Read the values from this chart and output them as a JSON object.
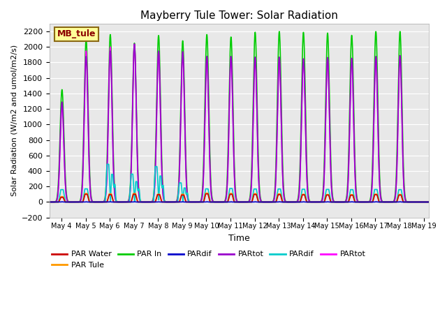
{
  "title": "Mayberry Tule Tower: Solar Radiation",
  "xlabel": "Time",
  "ylabel": "Solar Radiation (W/m2 and umol/m2/s)",
  "ylim": [
    -200,
    2300
  ],
  "yticks": [
    -200,
    0,
    200,
    400,
    600,
    800,
    1000,
    1200,
    1400,
    1600,
    1800,
    2000,
    2200
  ],
  "xlim_days": [
    3.5,
    19.2
  ],
  "xtick_days": [
    4,
    5,
    6,
    7,
    8,
    9,
    10,
    11,
    12,
    13,
    14,
    15,
    16,
    17,
    18,
    19
  ],
  "xtick_labels": [
    "May 4",
    "May 5",
    "May 6",
    "May 7",
    "May 8",
    "May 9",
    "May 10",
    "May 11",
    "May 12",
    "May 13",
    "May 14",
    "May 15",
    "May 16",
    "May 17",
    "May 18",
    "May 19"
  ],
  "bg_color": "#e8e8e8",
  "fig_color": "#ffffff",
  "legend_box_color": "#ffff99",
  "legend_box_edge": "#8b6914",
  "legend_label": "MB_tule",
  "series": [
    {
      "name": "PAR Water",
      "color": "#cc0000",
      "lw": 1.2
    },
    {
      "name": "PAR Tule",
      "color": "#ff9900",
      "lw": 1.2
    },
    {
      "name": "PAR In",
      "color": "#00cc00",
      "lw": 1.2
    },
    {
      "name": "PARdif",
      "color": "#0000cc",
      "lw": 1.2
    },
    {
      "name": "PARtot",
      "color": "#9900cc",
      "lw": 1.2
    },
    {
      "name": "PARdif",
      "color": "#00cccc",
      "lw": 1.2
    },
    {
      "name": "PARtot",
      "color": "#ff00ff",
      "lw": 1.2
    }
  ],
  "peaks": [
    {
      "day": 4,
      "par_in": 1450,
      "par_tot_purple": 1290,
      "par_tot_mag": 1250,
      "par_water": 60,
      "par_tule": 70,
      "pardif_blue": 3,
      "pardif_cyan": 160,
      "cloudy_cyan": false,
      "partial": true
    },
    {
      "day": 5,
      "par_in": 2100,
      "par_tot_purple": 1880,
      "par_tot_mag": 1950,
      "par_water": 100,
      "par_tule": 110,
      "pardif_blue": 3,
      "pardif_cyan": 170,
      "cloudy_cyan": false,
      "partial": false
    },
    {
      "day": 6,
      "par_in": 2160,
      "par_tot_purple": 1950,
      "par_tot_mag": 2000,
      "par_water": 95,
      "par_tule": 105,
      "pardif_blue": 3,
      "pardif_cyan": 650,
      "cloudy_cyan": true,
      "partial": false
    },
    {
      "day": 7,
      "par_in": 2050,
      "par_tot_purple": 2040,
      "par_tot_mag": 2035,
      "par_water": 100,
      "par_tule": 110,
      "pardif_blue": 3,
      "pardif_cyan": 480,
      "cloudy_cyan": true,
      "partial": false
    },
    {
      "day": 8,
      "par_in": 2150,
      "par_tot_purple": 1950,
      "par_tot_mag": 1940,
      "par_water": 95,
      "par_tule": 100,
      "pardif_blue": 3,
      "pardif_cyan": 610,
      "cloudy_cyan": true,
      "partial": false
    },
    {
      "day": 9,
      "par_in": 2080,
      "par_tot_purple": 1940,
      "par_tot_mag": 1920,
      "par_water": 90,
      "par_tule": 100,
      "pardif_blue": 3,
      "pardif_cyan": 330,
      "cloudy_cyan": true,
      "partial": false
    },
    {
      "day": 10,
      "par_in": 2160,
      "par_tot_purple": 1880,
      "par_tot_mag": 1870,
      "par_water": 105,
      "par_tule": 115,
      "pardif_blue": 3,
      "pardif_cyan": 170,
      "cloudy_cyan": false,
      "partial": false
    },
    {
      "day": 11,
      "par_in": 2130,
      "par_tot_purple": 1880,
      "par_tot_mag": 1870,
      "par_water": 100,
      "par_tule": 110,
      "pardif_blue": 3,
      "pardif_cyan": 175,
      "cloudy_cyan": false,
      "partial": false
    },
    {
      "day": 12,
      "par_in": 2190,
      "par_tot_purple": 1870,
      "par_tot_mag": 1860,
      "par_water": 98,
      "par_tule": 108,
      "pardif_blue": 3,
      "pardif_cyan": 168,
      "cloudy_cyan": false,
      "partial": false
    },
    {
      "day": 13,
      "par_in": 2200,
      "par_tot_purple": 1870,
      "par_tot_mag": 1860,
      "par_water": 95,
      "par_tule": 105,
      "pardif_blue": 3,
      "pardif_cyan": 168,
      "cloudy_cyan": false,
      "partial": false
    },
    {
      "day": 14,
      "par_in": 2190,
      "par_tot_purple": 1850,
      "par_tot_mag": 1840,
      "par_water": 93,
      "par_tule": 100,
      "pardif_blue": 3,
      "pardif_cyan": 165,
      "cloudy_cyan": false,
      "partial": false
    },
    {
      "day": 15,
      "par_in": 2180,
      "par_tot_purple": 1865,
      "par_tot_mag": 1855,
      "par_water": 90,
      "par_tule": 97,
      "pardif_blue": 3,
      "pardif_cyan": 163,
      "cloudy_cyan": false,
      "partial": false
    },
    {
      "day": 16,
      "par_in": 2150,
      "par_tot_purple": 1855,
      "par_tot_mag": 1848,
      "par_water": 88,
      "par_tule": 95,
      "pardif_blue": 3,
      "pardif_cyan": 160,
      "cloudy_cyan": false,
      "partial": false
    },
    {
      "day": 17,
      "par_in": 2200,
      "par_tot_purple": 1880,
      "par_tot_mag": 1870,
      "par_water": 95,
      "par_tule": 102,
      "pardif_blue": 3,
      "pardif_cyan": 162,
      "cloudy_cyan": false,
      "partial": false
    },
    {
      "day": 18,
      "par_in": 2200,
      "par_tot_purple": 1890,
      "par_tot_mag": 1882,
      "par_water": 90,
      "par_tule": 98,
      "pardif_blue": 3,
      "pardif_cyan": 160,
      "cloudy_cyan": false,
      "partial": false
    }
  ]
}
